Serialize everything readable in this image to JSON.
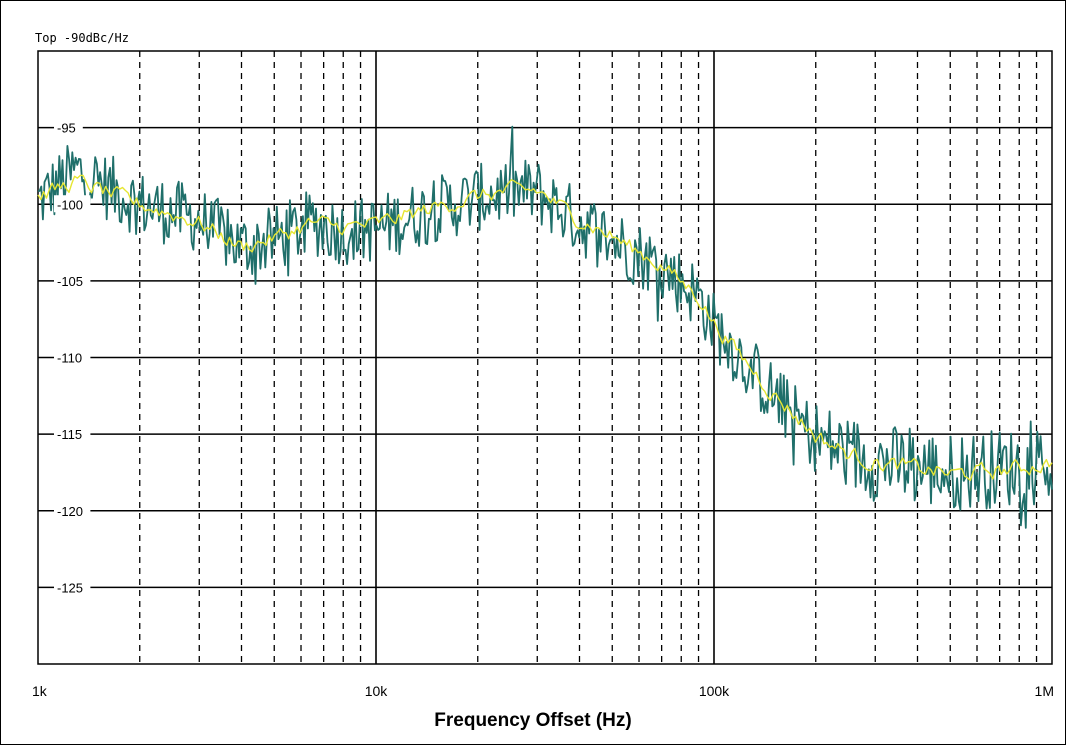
{
  "chart_data": {
    "type": "line",
    "title": "Top -90dBc/Hz",
    "xlabel": "Frequency Offset (Hz)",
    "ylabel": "",
    "xscale": "log",
    "xlim": [
      1000,
      1000000
    ],
    "ylim": [
      -130,
      -90
    ],
    "grid": true,
    "y_tick_values": [
      -95,
      -100,
      -105,
      -110,
      -115,
      -120,
      -125
    ],
    "y_tick_labels": [
      "-95",
      "-100",
      "-105",
      "-110",
      "-115",
      "-120",
      "-125"
    ],
    "x_tick_values": [
      1000,
      10000,
      100000,
      1000000
    ],
    "x_tick_labels": [
      "1k",
      "10k",
      "100k",
      "1M"
    ],
    "colors": {
      "trace_raw": "#1f6f6a",
      "trace_avg": "#e6e633",
      "grid": "#000000"
    },
    "series": [
      {
        "style": "raw",
        "x": [
          1000,
          1300,
          2000,
          3000,
          4000,
          5000,
          6500,
          8000,
          10000,
          15000,
          20000,
          25000,
          30000,
          40000,
          50000,
          70000,
          90000,
          100000,
          120000,
          150000,
          200000,
          250000,
          300000,
          400000,
          500000,
          700000,
          1000000
        ],
        "y": [
          -99.8,
          -97.8,
          -100,
          -101,
          -102.8,
          -102.3,
          -101.2,
          -101.8,
          -101.6,
          -100.3,
          -99.6,
          -99.1,
          -99.2,
          -101.2,
          -102.3,
          -104.1,
          -106,
          -107.9,
          -110,
          -112.5,
          -115.3,
          -116.3,
          -116.8,
          -117.2,
          -117.5,
          -117.2,
          -117
        ]
      },
      {
        "style": "average",
        "x": [
          1000,
          1300,
          2000,
          3000,
          4000,
          5000,
          6500,
          8000,
          10000,
          15000,
          20000,
          25000,
          30000,
          40000,
          50000,
          70000,
          90000,
          100000,
          120000,
          150000,
          200000,
          250000,
          300000,
          400000,
          500000,
          700000,
          1000000
        ],
        "y": [
          -99.5,
          -98.5,
          -100,
          -101.2,
          -102.8,
          -102.2,
          -101.2,
          -101.5,
          -101.3,
          -100.2,
          -99.5,
          -99.1,
          -99.1,
          -101,
          -102.1,
          -104,
          -106,
          -107.8,
          -109.9,
          -112.4,
          -115.1,
          -116.3,
          -116.9,
          -117.2,
          -117.6,
          -117.4,
          -116.9
        ]
      }
    ]
  }
}
